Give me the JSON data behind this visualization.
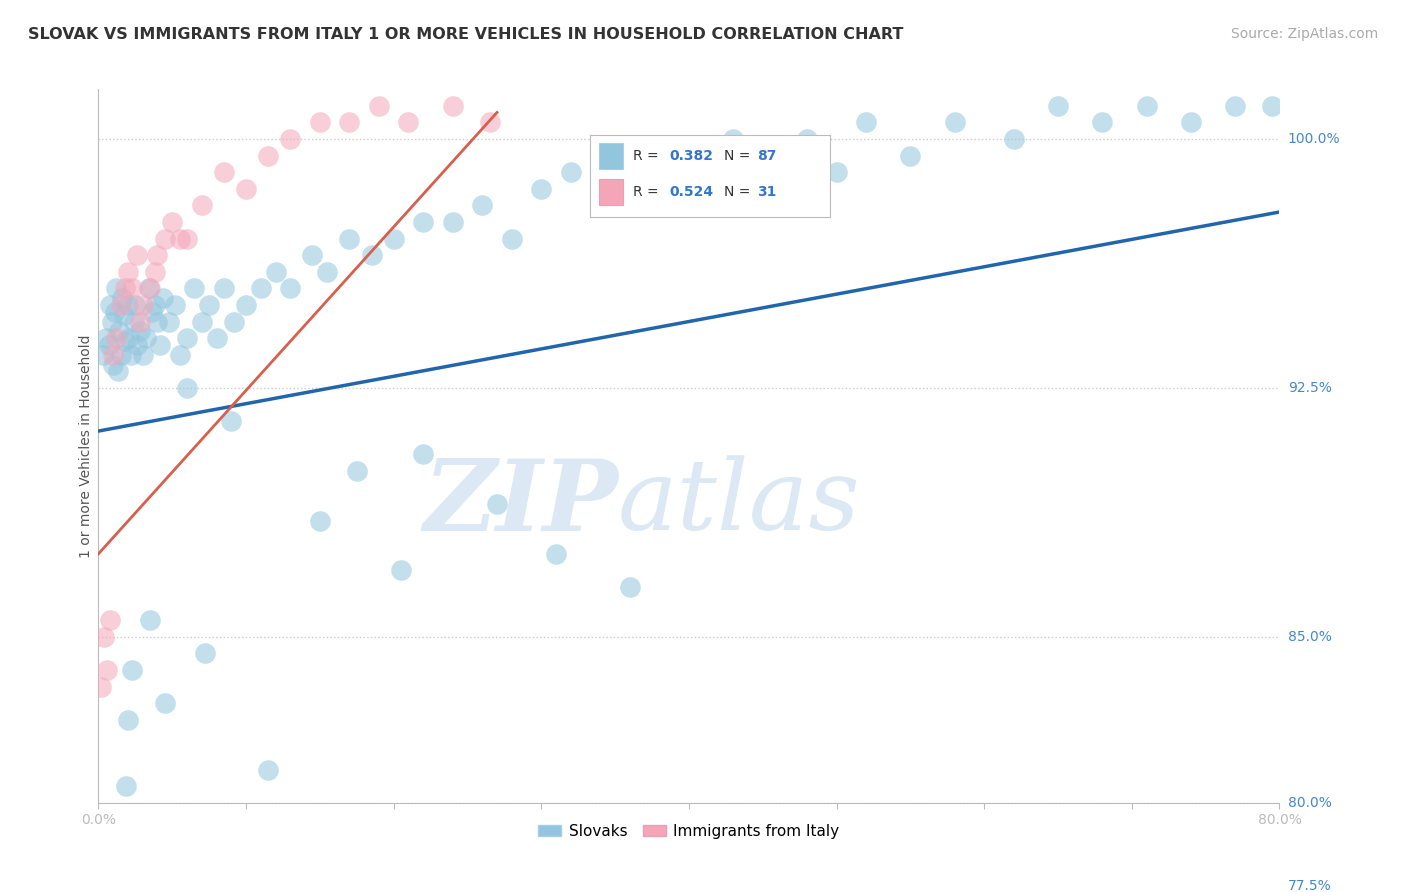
{
  "title": "SLOVAK VS IMMIGRANTS FROM ITALY 1 OR MORE VEHICLES IN HOUSEHOLD CORRELATION CHART",
  "source_text": "Source: ZipAtlas.com",
  "ylabel": "1 or more Vehicles in Household",
  "xlim": [
    0.0,
    80.0
  ],
  "ylim": [
    80.0,
    101.5
  ],
  "y_ticks": [
    80.0,
    85.0,
    92.5,
    100.0
  ],
  "y_tick_right_labels": [
    "80.0%",
    "85.0%",
    "92.5%",
    "100.0%"
  ],
  "extra_y_ticks": [
    77.5
  ],
  "extra_y_tick_labels": [
    "77.5%"
  ],
  "blue_color": "#92c5de",
  "pink_color": "#f4a6b8",
  "blue_edge_color": "#5a9fd4",
  "pink_edge_color": "#e8758a",
  "blue_line_color": "#2166ac",
  "pink_line_color": "#d6604d",
  "watermark_zip": "ZIP",
  "watermark_atlas": "atlas",
  "watermark_color": "#dce9f5",
  "background_color": "#ffffff",
  "grid_color": "#cccccc",
  "blue_trend_x": [
    0.0,
    80.0
  ],
  "blue_trend_y": [
    91.2,
    97.8
  ],
  "pink_trend_x": [
    0.0,
    27.0
  ],
  "pink_trend_y": [
    87.5,
    100.8
  ],
  "title_fontsize": 11.5,
  "source_fontsize": 10,
  "axis_label_fontsize": 10,
  "tick_fontsize": 10,
  "legend_blue_label_r": "R = 0.382",
  "legend_blue_label_n": "N = 87",
  "legend_pink_label_r": "R = 0.524",
  "legend_pink_label_n": "N = 31",
  "blue_scatter_x": [
    0.3,
    0.5,
    0.7,
    0.8,
    0.9,
    1.0,
    1.1,
    1.2,
    1.3,
    1.4,
    1.5,
    1.6,
    1.7,
    1.8,
    2.0,
    2.1,
    2.2,
    2.4,
    2.5,
    2.6,
    2.8,
    3.0,
    3.2,
    3.4,
    3.6,
    3.8,
    4.0,
    4.2,
    4.4,
    4.8,
    5.2,
    5.5,
    6.0,
    6.5,
    7.0,
    7.5,
    8.0,
    8.5,
    9.2,
    10.0,
    11.0,
    12.0,
    13.0,
    14.5,
    15.5,
    17.0,
    18.5,
    20.0,
    22.0,
    24.0,
    26.0,
    28.0,
    30.0,
    32.0,
    35.0,
    38.0,
    40.0,
    43.0,
    46.0,
    48.0,
    50.0,
    52.0,
    55.0,
    58.0,
    62.0,
    65.0,
    68.0,
    71.0,
    74.0,
    77.0,
    79.5,
    15.0,
    17.5,
    22.0,
    27.0,
    31.0,
    36.0,
    9.0,
    6.0,
    3.5,
    2.0,
    4.5,
    1.9,
    2.3,
    7.2,
    11.5,
    20.5
  ],
  "blue_scatter_y": [
    93.5,
    94.0,
    93.8,
    95.0,
    94.5,
    93.2,
    94.8,
    95.5,
    93.0,
    94.2,
    93.5,
    95.2,
    94.7,
    93.9,
    95.0,
    94.0,
    93.5,
    94.5,
    95.0,
    93.8,
    94.2,
    93.5,
    94.0,
    95.5,
    94.8,
    95.0,
    94.5,
    93.8,
    95.2,
    94.5,
    95.0,
    93.5,
    94.0,
    95.5,
    94.5,
    95.0,
    94.0,
    95.5,
    94.5,
    95.0,
    95.5,
    96.0,
    95.5,
    96.5,
    96.0,
    97.0,
    96.5,
    97.0,
    97.5,
    97.5,
    98.0,
    97.0,
    98.5,
    99.0,
    99.5,
    98.0,
    99.5,
    100.0,
    99.5,
    100.0,
    99.0,
    100.5,
    99.5,
    100.5,
    100.0,
    101.0,
    100.5,
    101.0,
    100.5,
    101.0,
    101.0,
    88.5,
    90.0,
    90.5,
    89.0,
    87.5,
    86.5,
    91.5,
    92.5,
    85.5,
    82.5,
    83.0,
    80.5,
    84.0,
    84.5,
    81.0,
    87.0
  ],
  "pink_scatter_x": [
    0.2,
    0.4,
    0.6,
    0.8,
    1.0,
    1.2,
    1.5,
    1.8,
    2.0,
    2.3,
    2.6,
    3.0,
    3.5,
    4.0,
    4.5,
    5.0,
    6.0,
    7.0,
    8.5,
    10.0,
    11.5,
    13.0,
    15.0,
    17.0,
    19.0,
    21.0,
    24.0,
    26.5,
    2.8,
    3.8,
    5.5
  ],
  "pink_scatter_y": [
    83.5,
    85.0,
    84.0,
    85.5,
    93.5,
    94.0,
    95.0,
    95.5,
    96.0,
    95.5,
    96.5,
    95.0,
    95.5,
    96.5,
    97.0,
    97.5,
    97.0,
    98.0,
    99.0,
    98.5,
    99.5,
    100.0,
    100.5,
    100.5,
    101.0,
    100.5,
    101.0,
    100.5,
    94.5,
    96.0,
    97.0
  ]
}
